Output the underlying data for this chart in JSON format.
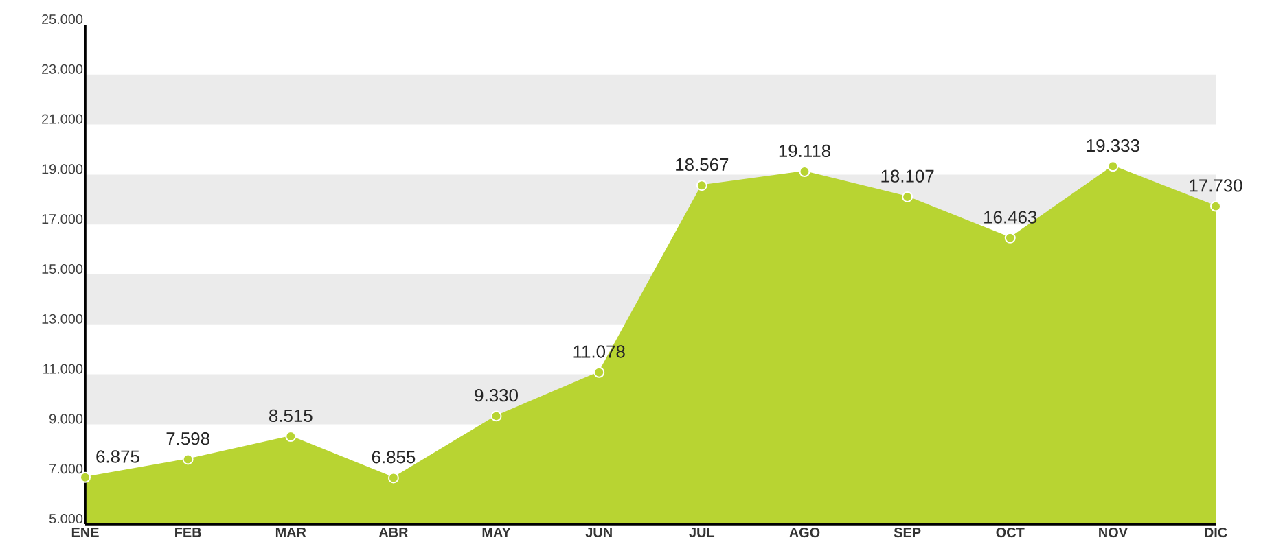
{
  "chart_data": {
    "type": "area",
    "categories": [
      "ENE",
      "FEB",
      "MAR",
      "ABR",
      "MAY",
      "JUN",
      "JUL",
      "AGO",
      "SEP",
      "OCT",
      "NOV",
      "DIC"
    ],
    "values": [
      6875,
      7598,
      8515,
      6855,
      9330,
      11078,
      18567,
      19118,
      18107,
      16463,
      19333,
      17730
    ],
    "value_labels": [
      "6.875",
      "7.598",
      "8.515",
      "6.855",
      "9.330",
      "11.078",
      "18.567",
      "19.118",
      "18.107",
      "16.463",
      "19.333",
      "17.730"
    ],
    "color": "#b8d432",
    "marker": "circle",
    "ylim": [
      5000,
      25000
    ],
    "yticks": [
      {
        "value": 5000,
        "label": "5.000"
      },
      {
        "value": 7000,
        "label": "7.000"
      },
      {
        "value": 9000,
        "label": "9.000"
      },
      {
        "value": 11000,
        "label": "11.000"
      },
      {
        "value": 13000,
        "label": "13.000"
      },
      {
        "value": 15000,
        "label": "15.000"
      },
      {
        "value": 17000,
        "label": "17.000"
      },
      {
        "value": 19000,
        "label": "19.000"
      },
      {
        "value": 21000,
        "label": "21.000"
      },
      {
        "value": 23000,
        "label": "23.000"
      },
      {
        "value": 25000,
        "label": "25.000"
      }
    ],
    "bands": [
      {
        "axis": "y",
        "from": 9000,
        "to": 11000,
        "color": "#ebebeb"
      },
      {
        "axis": "y",
        "from": 13000,
        "to": 15000,
        "color": "#ebebeb"
      },
      {
        "axis": "y",
        "from": 17000,
        "to": 19000,
        "color": "#ebebeb"
      },
      {
        "axis": "y",
        "from": 21000,
        "to": 23000,
        "color": "#ebebeb"
      }
    ]
  }
}
